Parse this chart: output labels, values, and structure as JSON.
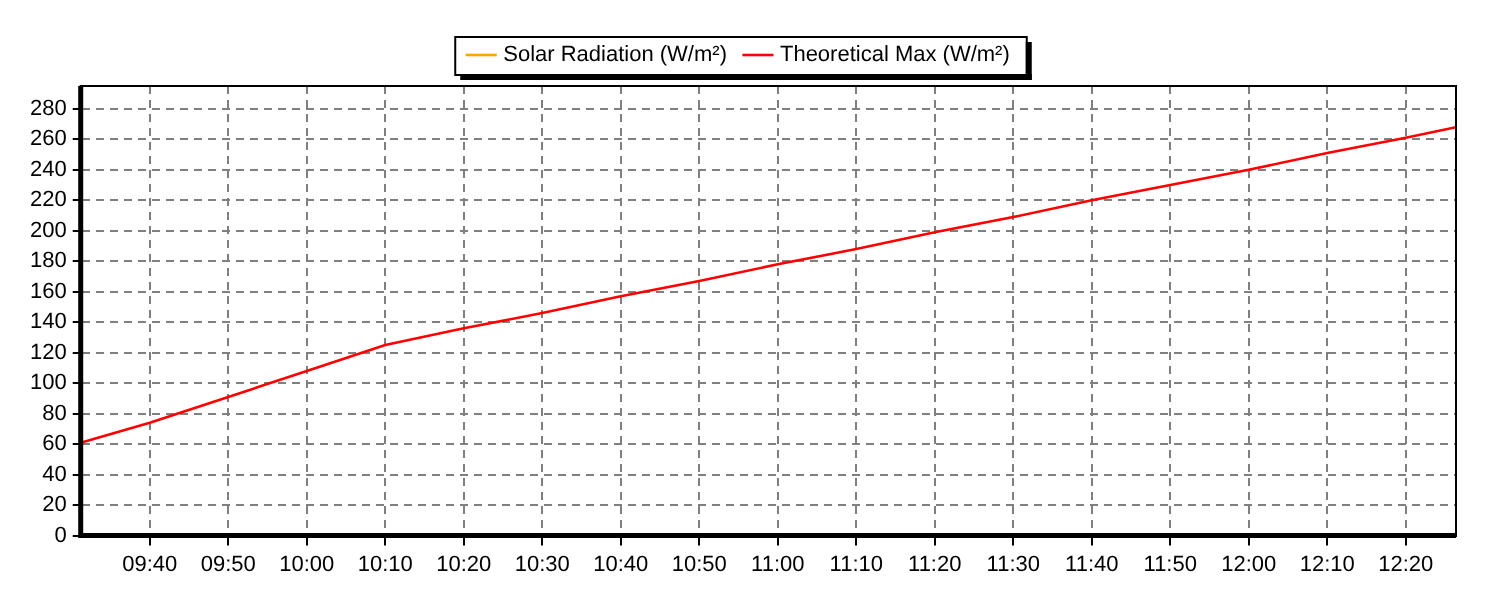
{
  "chart_data": {
    "type": "line",
    "x": [
      9.52,
      9.6667,
      9.8333,
      10.0,
      10.1667,
      10.3333,
      10.5,
      10.6667,
      10.8333,
      11.0,
      11.1667,
      11.3333,
      11.5,
      11.6667,
      11.8333,
      12.0,
      12.1667,
      12.3333,
      12.44
    ],
    "series": [
      {
        "name": "Solar Radiation (W/m²)",
        "color": "#ffa500",
        "values": [
          null,
          null,
          null,
          null,
          null,
          null,
          null,
          null,
          null,
          null,
          null,
          null,
          null,
          null,
          null,
          null,
          null,
          null,
          null
        ]
      },
      {
        "name": "Theoretical Max (W/m²)",
        "color": "#ff0000",
        "values": [
          61,
          74,
          91,
          108,
          125,
          136,
          146,
          157,
          167,
          178,
          188,
          199,
          209,
          220,
          230,
          240,
          251,
          261,
          268
        ]
      }
    ],
    "xlim": [
      9.52,
      12.44
    ],
    "xticks": [
      {
        "value": 9.6667,
        "label": "09:40"
      },
      {
        "value": 9.8333,
        "label": "09:50"
      },
      {
        "value": 10.0,
        "label": "10:00"
      },
      {
        "value": 10.1667,
        "label": "10:10"
      },
      {
        "value": 10.3333,
        "label": "10:20"
      },
      {
        "value": 10.5,
        "label": "10:30"
      },
      {
        "value": 10.6667,
        "label": "10:40"
      },
      {
        "value": 10.8333,
        "label": "10:50"
      },
      {
        "value": 11.0,
        "label": "11:00"
      },
      {
        "value": 11.1667,
        "label": "11:10"
      },
      {
        "value": 11.3333,
        "label": "11:20"
      },
      {
        "value": 11.5,
        "label": "11:30"
      },
      {
        "value": 11.6667,
        "label": "11:40"
      },
      {
        "value": 11.8333,
        "label": "11:50"
      },
      {
        "value": 12.0,
        "label": "12:00"
      },
      {
        "value": 12.1667,
        "label": "12:10"
      },
      {
        "value": 12.3333,
        "label": "12:20"
      }
    ],
    "ylim": [
      0,
      295
    ],
    "yticks": [
      0,
      20,
      40,
      60,
      80,
      100,
      120,
      140,
      160,
      180,
      200,
      220,
      240,
      260,
      280
    ],
    "grid": true,
    "legend": "top",
    "marker": "none",
    "line_style": "solid"
  }
}
